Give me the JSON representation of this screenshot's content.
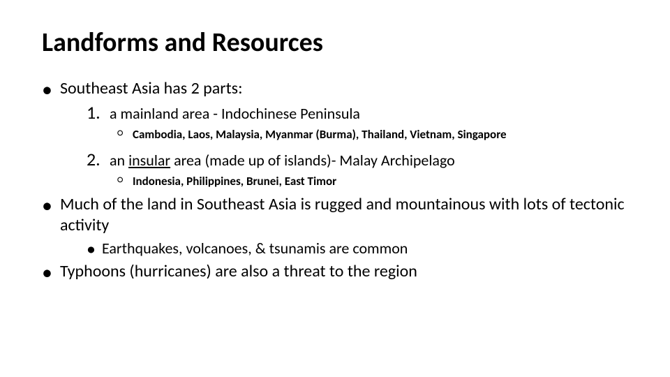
{
  "typography": {
    "title_fontsize": 38,
    "bullet_fontsize": 24,
    "num_fontsize": 26,
    "num_text_fontsize": 22,
    "circ_fontsize": 17,
    "sub_bullet_fontsize": 22,
    "font_family": "Calibri",
    "text_color": "#000000",
    "background_color": "#ffffff"
  },
  "title": "Landforms and Resources",
  "b1": "Southeast Asia has 2 parts:",
  "n1_num": "1.",
  "n1_text": "a mainland area - Indochinese Peninsula",
  "n1_sub": "Cambodia, Laos, Malaysia, Myanmar (Burma), Thailand, Vietnam, Singapore",
  "n2_num": "2.",
  "n2_text_pre": "an ",
  "n2_text_ul": "insular",
  "n2_text_post": " area (made up of islands)- Malay Archipelago",
  "n2_sub": "Indonesia, Philippines, Brunei, East Timor",
  "b2": "Much of the land in Southeast Asia is rugged and mountainous with lots of tectonic activity",
  "b2_sub": "Earthquakes, volcanoes, & tsunamis are common",
  "b3": "Typhoons (hurricanes) are also a threat to the region"
}
